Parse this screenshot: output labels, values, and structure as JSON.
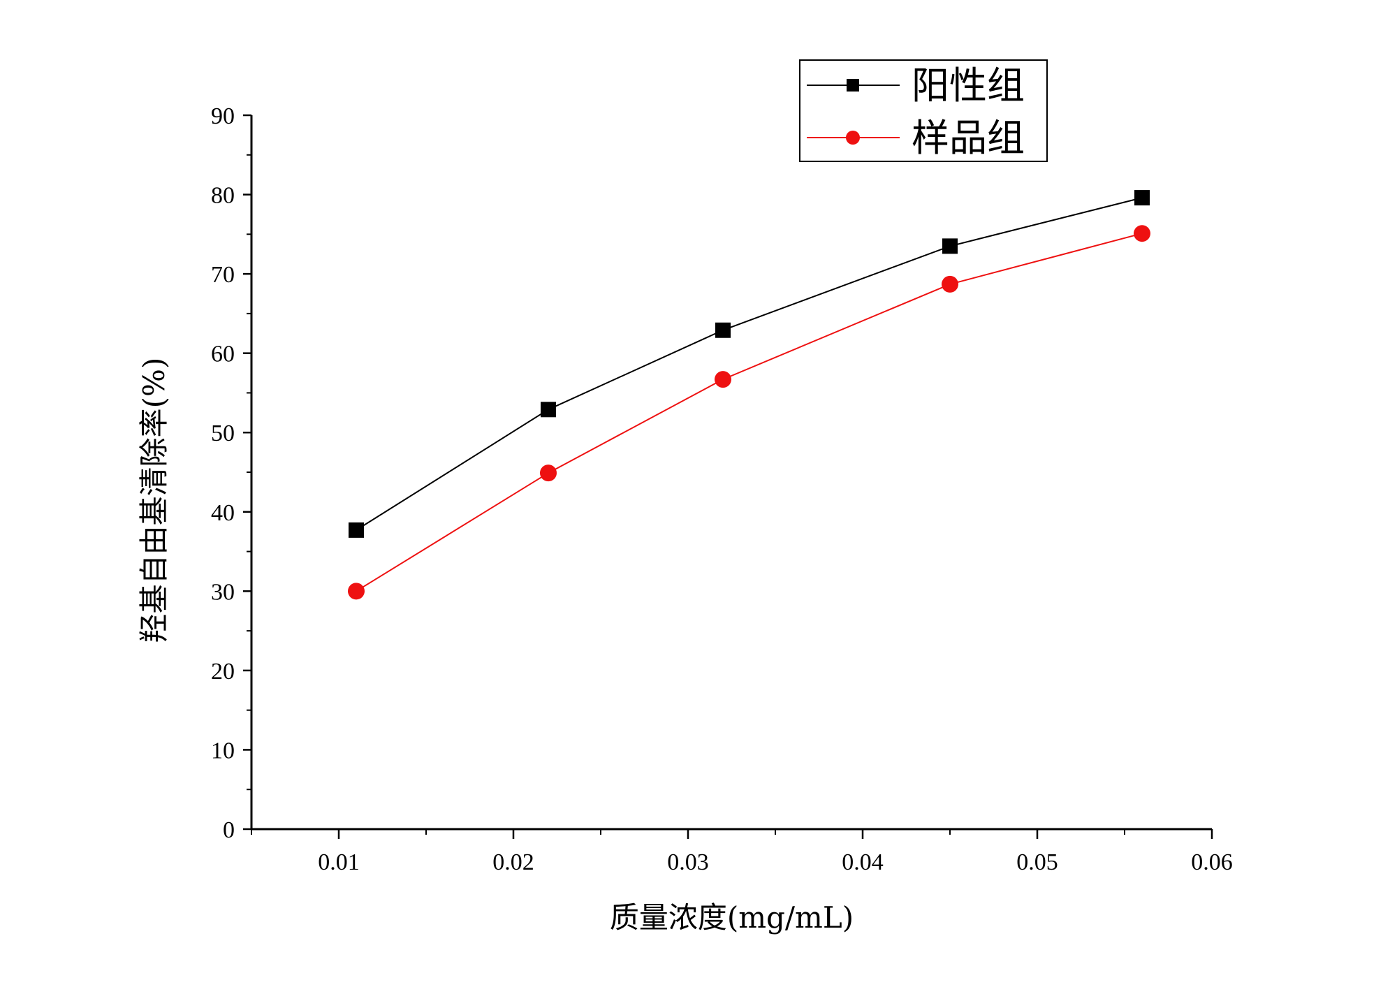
{
  "chart_data": {
    "type": "line",
    "xlabel": "质量浓度(mg/mL)",
    "ylabel": "羟基自由基清除率(%)",
    "xlim": [
      0.005,
      0.06
    ],
    "ylim": [
      0,
      90
    ],
    "x_ticks": [
      "0.01",
      "0.02",
      "0.03",
      "0.04",
      "0.05",
      "0.06"
    ],
    "y_ticks": [
      "0",
      "10",
      "20",
      "30",
      "40",
      "50",
      "60",
      "70",
      "80",
      "90"
    ],
    "grid": false,
    "legend_position": "top-right",
    "series": [
      {
        "name": "阳性组",
        "color": "#000000",
        "marker": "square",
        "x": [
          0.011,
          0.022,
          0.032,
          0.045,
          0.056
        ],
        "y": [
          37.7,
          52.9,
          62.9,
          73.5,
          79.6
        ]
      },
      {
        "name": "样品组",
        "color": "#ee1111",
        "marker": "circle",
        "x": [
          0.011,
          0.022,
          0.032,
          0.045,
          0.056
        ],
        "y": [
          30.0,
          44.9,
          56.7,
          68.7,
          75.1
        ]
      }
    ]
  }
}
